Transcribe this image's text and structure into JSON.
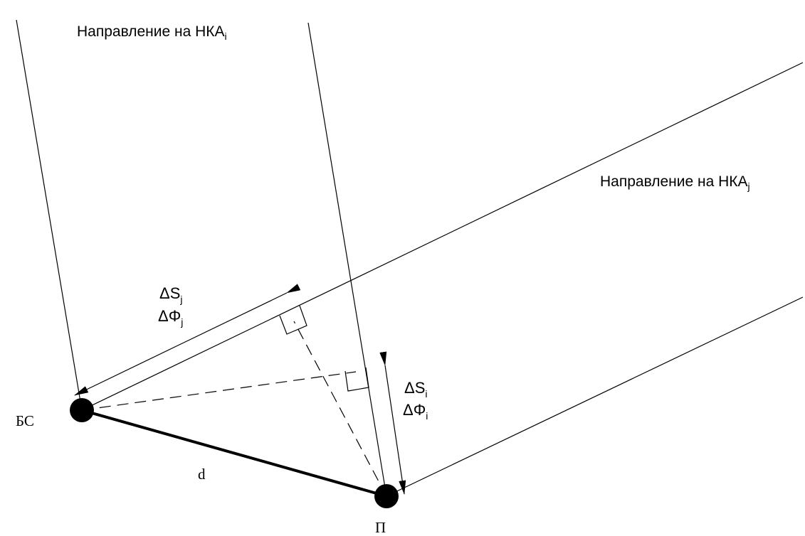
{
  "labels": {
    "direction_i": {
      "text": "Направление на НКА",
      "sub": "i"
    },
    "direction_j": {
      "text": "Направление на НКА",
      "sub": "j"
    },
    "delta_s_j": {
      "text": "ΔS",
      "sub": "j"
    },
    "delta_phi_j": {
      "text": "ΔΦ",
      "sub": "j"
    },
    "delta_s_i": {
      "text": "ΔS",
      "sub": "i"
    },
    "delta_phi_i": {
      "text": "ΔΦ",
      "sub": "i"
    },
    "base_station": "БС",
    "rover": "П",
    "baseline": "d"
  },
  "colors": {
    "ink": "#000000",
    "background": "#ffffff"
  }
}
